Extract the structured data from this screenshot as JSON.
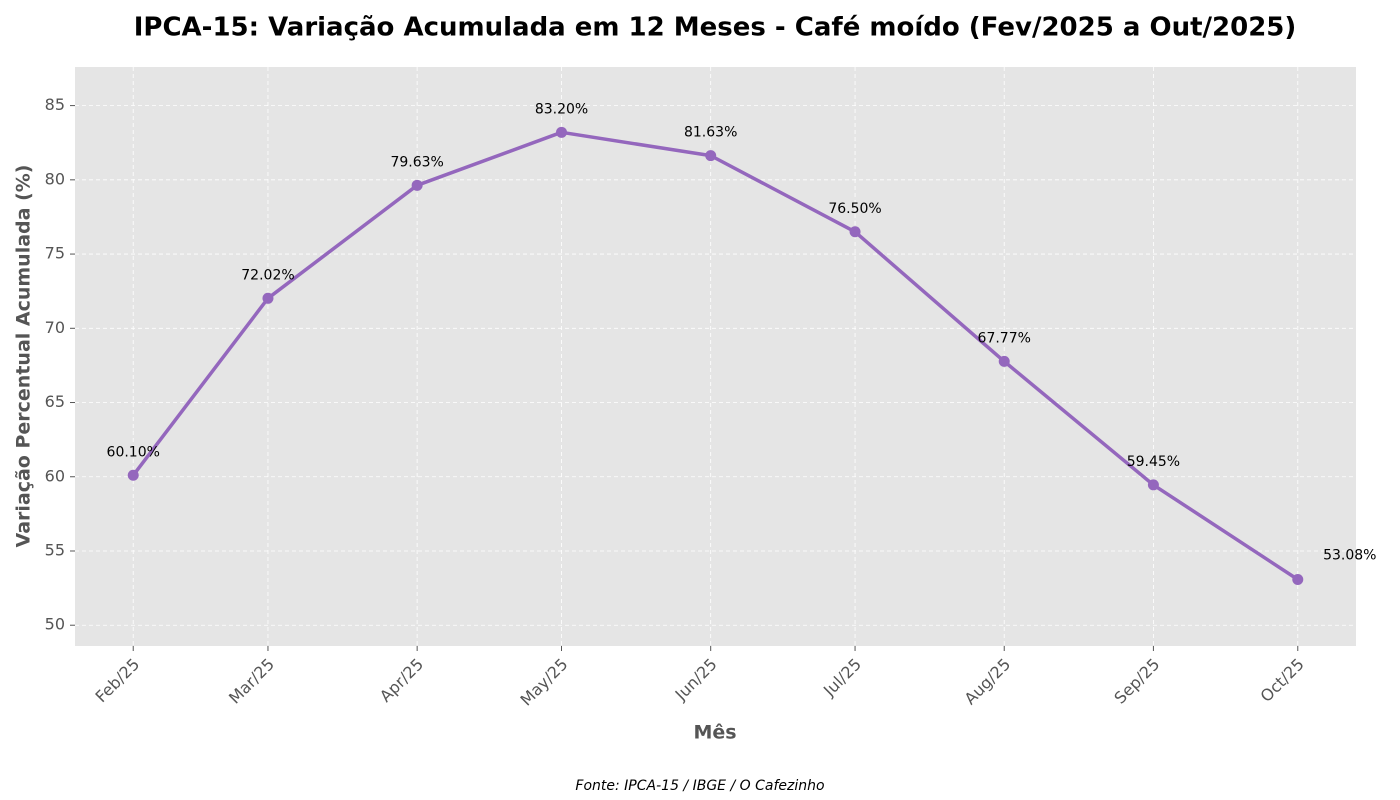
{
  "chart_data": {
    "type": "line",
    "title": "IPCA-15: Variação Acumulada em 12 Meses - Café moído (Fev/2025 a Out/2025)",
    "x_label": "Mês",
    "y_label": "Variação Percentual Acumulada (%)",
    "source": "Fonte: IPCA-15 / IBGE / O Cafezinho",
    "x": [
      "2025-02",
      "2025-03",
      "2025-04",
      "2025-05",
      "2025-06",
      "2025-07",
      "2025-08",
      "2025-09",
      "2025-10"
    ],
    "xticks": [
      {
        "value": "2025-02",
        "label": "Feb/25"
      },
      {
        "value": "2025-03",
        "label": "Mar/25"
      },
      {
        "value": "2025-04",
        "label": "Apr/25"
      },
      {
        "value": "2025-05",
        "label": "May/25"
      },
      {
        "value": "2025-06",
        "label": "Jun/25"
      },
      {
        "value": "2025-07",
        "label": "Jul/25"
      },
      {
        "value": "2025-08",
        "label": "Aug/25"
      },
      {
        "value": "2025-09",
        "label": "Sep/25"
      },
      {
        "value": "2025-10",
        "label": "Oct/25"
      }
    ],
    "series": [
      {
        "name": "Café moído",
        "color": "#9467bd",
        "values": [
          60.1,
          72.02,
          79.63,
          83.2,
          81.63,
          76.5,
          67.77,
          59.45,
          53.08
        ],
        "value_labels": [
          "60.10%",
          "72.02%",
          "79.63%",
          "83.20%",
          "81.63%",
          "76.50%",
          "67.77%",
          "59.45%",
          "53.08%"
        ]
      }
    ],
    "ylim": [
      48.6,
      87.6
    ],
    "yticks": [
      50,
      55,
      60,
      65,
      70,
      75,
      80,
      85
    ],
    "grid": true
  }
}
